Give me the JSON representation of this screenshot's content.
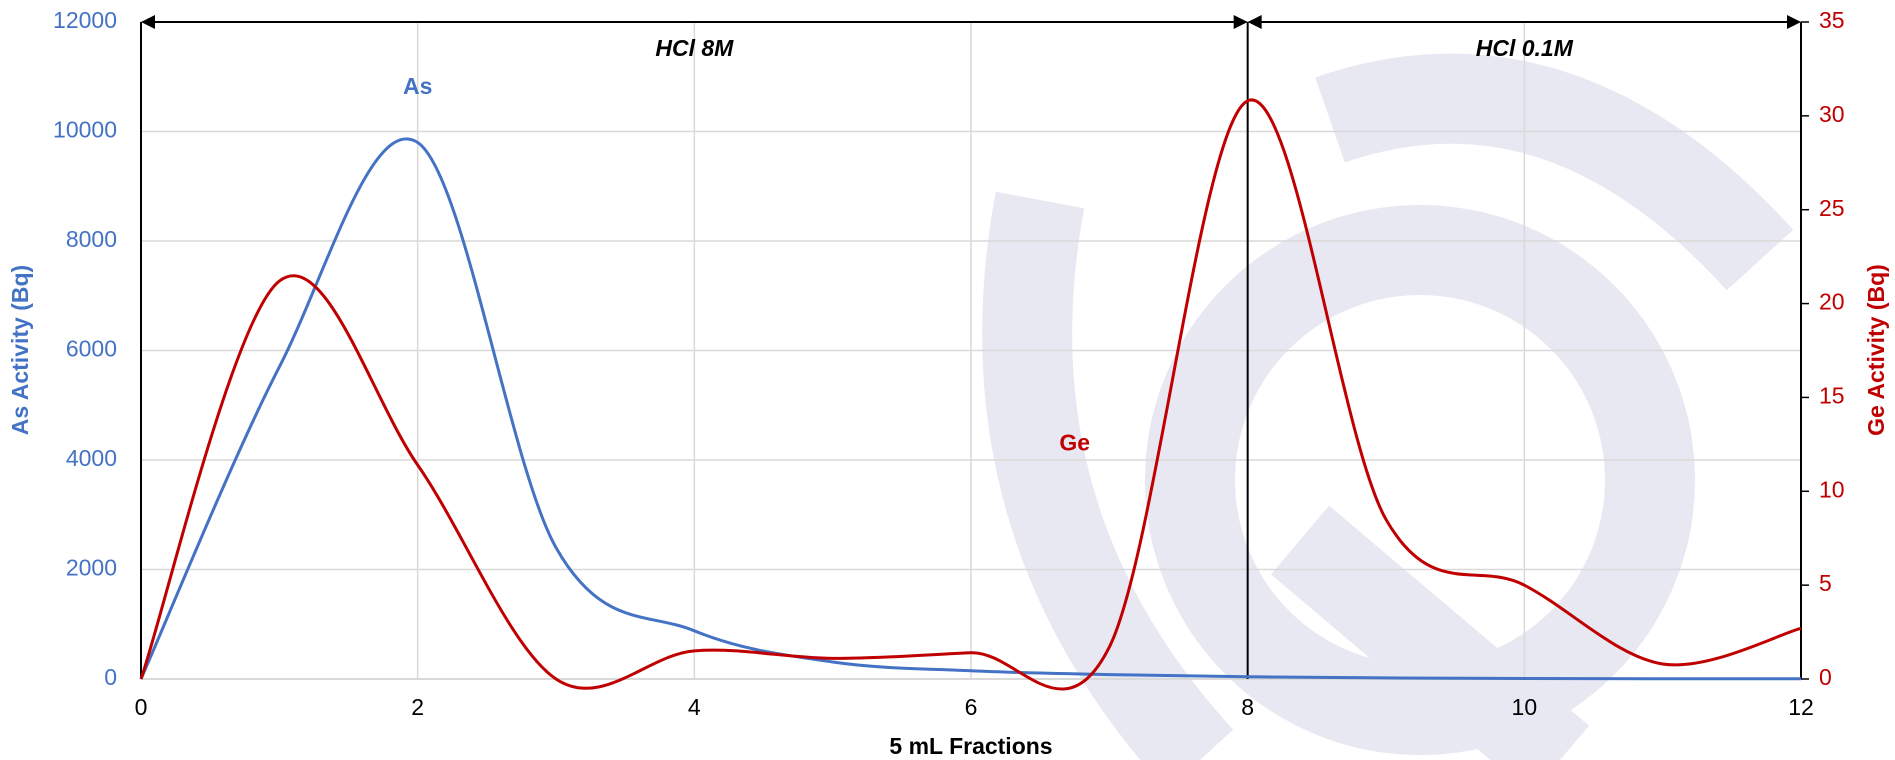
{
  "chart_data": {
    "type": "line",
    "x": [
      0,
      1,
      2,
      3,
      4,
      5,
      6,
      7,
      8,
      9,
      10,
      11,
      12
    ],
    "xlabel": "5 mL Fractions",
    "ylabel": "As Activity (Bq)",
    "y2label": "Ge Activity (Bq)",
    "xlim": [
      0,
      12
    ],
    "xticks": [
      0,
      2,
      4,
      6,
      8,
      10,
      12
    ],
    "ylim": [
      0,
      12000
    ],
    "yticks": [
      0,
      2000,
      4000,
      6000,
      8000,
      10000,
      12000
    ],
    "y2lim": [
      0,
      35
    ],
    "y2ticks": [
      0,
      5,
      10,
      15,
      20,
      25,
      30,
      35
    ],
    "grid": true,
    "series": [
      {
        "name": "As",
        "color": "#4472c4",
        "values": [
          0,
          5700,
          9800,
          2400,
          880,
          310,
          150,
          80,
          40,
          20,
          10,
          5,
          5
        ]
      },
      {
        "name": "Ge",
        "color": "#c00000",
        "axis": "y2",
        "values": [
          0,
          21.2,
          11.4,
          0,
          1.5,
          1.1,
          1.4,
          1.7,
          30.8,
          8.5,
          5.0,
          0.8,
          2.7
        ]
      }
    ],
    "annotations": [
      "HCl 8M",
      "HCl 0.1M"
    ]
  }
}
